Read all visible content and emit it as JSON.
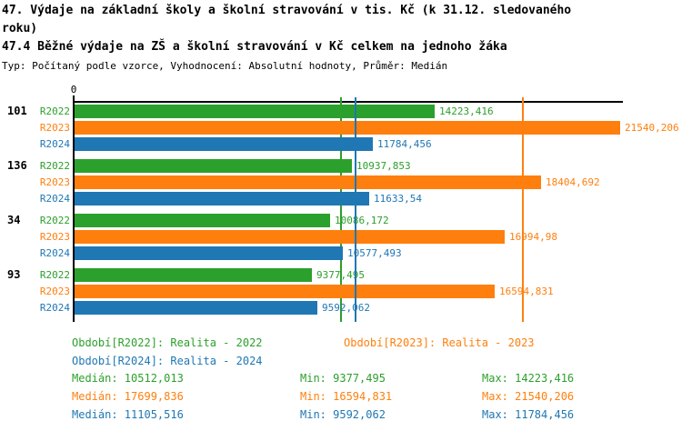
{
  "page": {
    "title_line": "47. Výdaje na základní školy a školní stravování v tis. Kč (k 31.12. sledovaného roku)",
    "subtitle_line": "47.4 Běžné výdaje na ZŠ a školní stravování v Kč celkem na jednoho žáka",
    "meta_line": "Typ: Počítaný podle vzorce, Vyhodnocení: Absolutní hodnoty, Průměr: Medián"
  },
  "chart_data": {
    "type": "bar",
    "orientation": "horizontal",
    "title": "47.4 Běžné výdaje na ZŠ a školní stravování v Kč celkem na jednoho žáka",
    "xlabel": "",
    "ylabel": "",
    "x_axis": {
      "tick_labels": [
        "0"
      ],
      "min": 0,
      "max": 21540.206
    },
    "grid": false,
    "legend_position": "bottom",
    "series_periods": [
      "R2022",
      "R2023",
      "R2024"
    ],
    "series_colors": {
      "R2022": "#2ca02c",
      "R2023": "#ff7f0e",
      "R2024": "#1f77b4"
    },
    "axis_color": "#000000",
    "groups": [
      {
        "label": "101",
        "bars": [
          {
            "period": "R2022",
            "value": 14223.416,
            "display": "14223,416"
          },
          {
            "period": "R2023",
            "value": 21540.206,
            "display": "21540,206"
          },
          {
            "period": "R2024",
            "value": 11784.456,
            "display": "11784,456"
          }
        ]
      },
      {
        "label": "136",
        "bars": [
          {
            "period": "R2022",
            "value": 10937.853,
            "display": "10937,853"
          },
          {
            "period": "R2023",
            "value": 18404.692,
            "display": "18404,692"
          },
          {
            "period": "R2024",
            "value": 11633.54,
            "display": "11633,54"
          }
        ]
      },
      {
        "label": "34",
        "bars": [
          {
            "period": "R2022",
            "value": 10086.172,
            "display": "10086,172"
          },
          {
            "period": "R2023",
            "value": 16994.98,
            "display": "16994,98"
          },
          {
            "period": "R2024",
            "value": 10577.493,
            "display": "10577,493"
          }
        ]
      },
      {
        "label": "93",
        "bars": [
          {
            "period": "R2022",
            "value": 9377.495,
            "display": "9377,495"
          },
          {
            "period": "R2023",
            "value": 16594.831,
            "display": "16594,831"
          },
          {
            "period": "R2024",
            "value": 9592.062,
            "display": "9592,062"
          }
        ]
      }
    ],
    "median_lines": [
      {
        "period": "R2022",
        "value": 10512.013
      },
      {
        "period": "R2023",
        "value": 17699.836
      },
      {
        "period": "R2024",
        "value": 11105.516
      }
    ],
    "legend_entries": [
      {
        "period": "R2022",
        "text": "Období[R2022]: Realita - 2022"
      },
      {
        "period": "R2023",
        "text": "Období[R2023]: Realita - 2023"
      },
      {
        "period": "R2024",
        "text": "Období[R2024]: Realita - 2024"
      }
    ],
    "stats": [
      {
        "period": "R2022",
        "median": "Medián: 10512,013",
        "min": "Min: 9377,495",
        "max": "Max: 14223,416"
      },
      {
        "period": "R2023",
        "median": "Medián: 17699,836",
        "min": "Min: 16594,831",
        "max": "Max: 21540,206"
      },
      {
        "period": "R2024",
        "median": "Medián: 11105,516",
        "min": "Min: 9592,062",
        "max": "Max: 11784,456"
      }
    ]
  }
}
